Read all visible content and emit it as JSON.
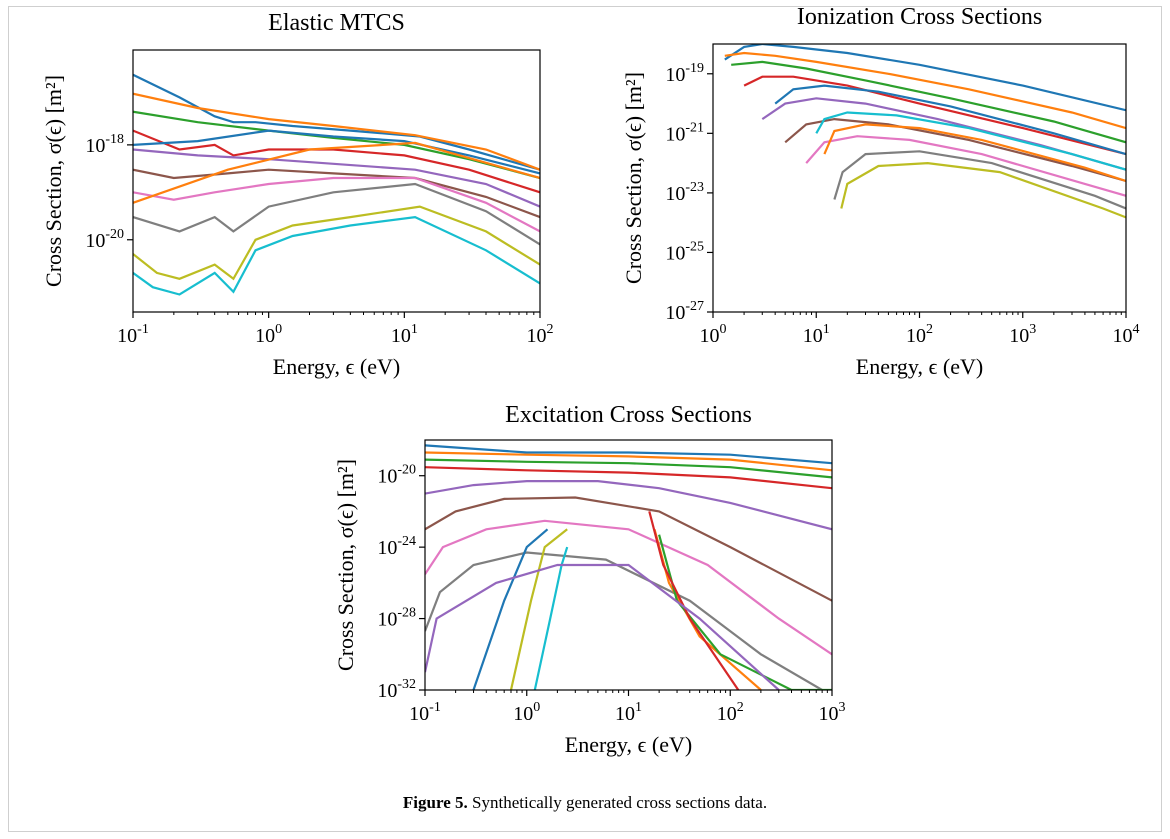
{
  "figure": {
    "caption_label": "Figure 5.",
    "caption_text": " Synthetically generated cross sections data."
  },
  "chart_data": [
    {
      "type": "line",
      "title": "Elastic MTCS",
      "xlabel": "Energy, ϵ (eV)",
      "ylabel": "Cross Section, σ(ϵ) [m²]",
      "xscale": "log",
      "yscale": "log",
      "xlim": [
        0.1,
        100
      ],
      "ylim": [
        3e-22,
        1e-16
      ],
      "xticks": [
        {
          "base": "10",
          "exp": "-1",
          "value": 0.1
        },
        {
          "base": "10",
          "exp": "0",
          "value": 1
        },
        {
          "base": "10",
          "exp": "1",
          "value": 10
        },
        {
          "base": "10",
          "exp": "2",
          "value": 100
        }
      ],
      "yticks": [
        {
          "base": "10",
          "exp": "-18",
          "value": 1e-18
        },
        {
          "base": "10",
          "exp": "-20",
          "value": 1e-20
        }
      ],
      "grid": false,
      "legend": "none",
      "colors": [
        "#1f77b4",
        "#ff7f0e",
        "#2ca02c",
        "#d62728",
        "#9467bd",
        "#8c564b",
        "#e377c2",
        "#7f7f7f",
        "#bcbd22",
        "#17becf"
      ],
      "series": [
        {
          "x": [
            0.1,
            0.22,
            0.4,
            0.55,
            0.8,
            1.5,
            4,
            13,
            30,
            100
          ],
          "y": [
            3e-17,
            1e-17,
            4e-18,
            3e-18,
            3e-18,
            2.5e-18,
            2e-18,
            1.5e-18,
            8e-19,
            3e-19
          ]
        },
        {
          "x": [
            0.1,
            0.3,
            1,
            3,
            12,
            40,
            100
          ],
          "y": [
            1.2e-17,
            6e-18,
            3.5e-18,
            2.5e-18,
            1.6e-18,
            8e-19,
            3e-19
          ]
        },
        {
          "x": [
            0.1,
            0.3,
            1,
            3,
            10,
            30,
            100
          ],
          "y": [
            5e-18,
            3e-18,
            2e-18,
            1.4e-18,
            1e-18,
            5e-19,
            2e-19
          ]
        },
        {
          "x": [
            0.1,
            0.22,
            0.4,
            0.55,
            1,
            3,
            10,
            30,
            100
          ],
          "y": [
            2e-18,
            8e-19,
            1e-18,
            6e-19,
            8e-19,
            8e-19,
            6e-19,
            3e-19,
            1e-19
          ]
        },
        {
          "x": [
            0.1,
            0.3,
            1,
            3,
            12,
            40,
            100
          ],
          "y": [
            8e-19,
            6e-19,
            5e-19,
            4e-19,
            3e-19,
            1.5e-19,
            5e-20
          ]
        },
        {
          "x": [
            0.1,
            0.2,
            0.5,
            1,
            3,
            12,
            40,
            100
          ],
          "y": [
            3e-19,
            2e-19,
            2.5e-19,
            3e-19,
            2.5e-19,
            2e-19,
            8e-20,
            3e-20
          ]
        },
        {
          "x": [
            0.1,
            0.2,
            0.4,
            1,
            3,
            12,
            40,
            100
          ],
          "y": [
            1e-19,
            7e-20,
            1e-19,
            1.5e-19,
            2e-19,
            2e-19,
            6e-20,
            1.5e-20
          ]
        },
        {
          "x": [
            0.1,
            0.22,
            0.4,
            0.55,
            1,
            3,
            12,
            40,
            100
          ],
          "y": [
            3e-20,
            1.5e-20,
            3e-20,
            1.5e-20,
            5e-20,
            1e-19,
            1.5e-19,
            4e-20,
            8e-21
          ]
        },
        {
          "x": [
            0.1,
            0.15,
            0.22,
            0.4,
            0.55,
            0.8,
            1.5,
            4,
            13,
            40,
            100
          ],
          "y": [
            5e-21,
            2e-21,
            1.5e-21,
            3e-21,
            1.5e-21,
            1e-20,
            2e-20,
            3e-20,
            5e-20,
            1.5e-20,
            3e-21
          ]
        },
        {
          "x": [
            0.1,
            0.14,
            0.22,
            0.4,
            0.55,
            0.8,
            1.5,
            4,
            12,
            40,
            100
          ],
          "y": [
            2e-21,
            1e-21,
            7e-22,
            2e-21,
            8e-22,
            6e-21,
            1.2e-20,
            2e-20,
            3e-20,
            6e-21,
            1.2e-21
          ]
        },
        {
          "x": [
            0.1,
            0.3,
            1,
            3,
            10,
            30,
            100
          ],
          "y": [
            1e-18,
            1.2e-18,
            2e-18,
            1.5e-18,
            1.2e-18,
            6e-19,
            2.5e-19
          ]
        },
        {
          "x": [
            0.1,
            0.5,
            2,
            12,
            100
          ],
          "y": [
            6e-20,
            3e-19,
            8e-19,
            1.1e-18,
            2e-19
          ]
        }
      ]
    },
    {
      "type": "line",
      "title": "Ionization Cross Sections",
      "xlabel": "Energy, ϵ (eV)",
      "ylabel": "Cross Section, σ(ϵ) [m²]",
      "xscale": "log",
      "yscale": "log",
      "xlim": [
        1,
        10000
      ],
      "ylim": [
        1e-27,
        1e-18
      ],
      "xticks": [
        {
          "base": "10",
          "exp": "0",
          "value": 1
        },
        {
          "base": "10",
          "exp": "1",
          "value": 10
        },
        {
          "base": "10",
          "exp": "2",
          "value": 100
        },
        {
          "base": "10",
          "exp": "3",
          "value": 1000
        },
        {
          "base": "10",
          "exp": "4",
          "value": 10000
        }
      ],
      "yticks": [
        {
          "base": "10",
          "exp": "-19",
          "value": 1e-19
        },
        {
          "base": "10",
          "exp": "-21",
          "value": 1e-21
        },
        {
          "base": "10",
          "exp": "-23",
          "value": 1e-23
        },
        {
          "base": "10",
          "exp": "-25",
          "value": 1e-25
        },
        {
          "base": "10",
          "exp": "-27",
          "value": 1e-27
        }
      ],
      "grid": false,
      "legend": "none",
      "colors": [
        "#1f77b4",
        "#ff7f0e",
        "#2ca02c",
        "#d62728",
        "#9467bd",
        "#8c564b",
        "#e377c2",
        "#7f7f7f",
        "#bcbd22",
        "#17becf"
      ],
      "series": [
        {
          "x": [
            1.3,
            2,
            3,
            6,
            20,
            100,
            1000,
            10000
          ],
          "y": [
            3e-19,
            8e-19,
            1e-18,
            8e-19,
            5e-19,
            2e-19,
            4e-20,
            6e-21
          ]
        },
        {
          "x": [
            1.3,
            2,
            4,
            10,
            50,
            300,
            3000,
            10000
          ],
          "y": [
            4e-19,
            5e-19,
            4e-19,
            2.5e-19,
            1e-19,
            3e-20,
            5e-21,
            1.5e-21
          ]
        },
        {
          "x": [
            1.5,
            3,
            8,
            30,
            200,
            2000,
            10000
          ],
          "y": [
            2e-19,
            2.5e-19,
            1.5e-19,
            6e-20,
            1.5e-20,
            2.5e-21,
            5e-22
          ]
        },
        {
          "x": [
            2,
            3,
            6,
            20,
            100,
            1000,
            10000
          ],
          "y": [
            4e-20,
            8e-20,
            8e-20,
            4e-20,
            1e-20,
            1.5e-21,
            2e-22
          ]
        },
        {
          "x": [
            3,
            5,
            10,
            30,
            150,
            1500,
            10000
          ],
          "y": [
            3e-21,
            1e-20,
            1.5e-20,
            1e-20,
            3e-21,
            4e-22,
            6e-23
          ]
        },
        {
          "x": [
            5,
            8,
            15,
            50,
            300,
            3000,
            10000
          ],
          "y": [
            5e-22,
            2e-21,
            3e-21,
            2e-21,
            6e-22,
            8e-23,
            2.5e-23
          ]
        },
        {
          "x": [
            8,
            12,
            25,
            80,
            400,
            4000,
            10000
          ],
          "y": [
            1e-22,
            5e-22,
            8e-22,
            6e-22,
            2e-22,
            2e-23,
            8e-24
          ]
        },
        {
          "x": [
            15,
            18,
            30,
            100,
            500,
            5000,
            10000
          ],
          "y": [
            6e-24,
            5e-23,
            2e-22,
            2.5e-22,
            1e-22,
            8e-24,
            3e-24
          ]
        },
        {
          "x": [
            17.5,
            20,
            40,
            120,
            600,
            6000,
            10000
          ],
          "y": [
            3e-24,
            2e-23,
            8e-23,
            1e-22,
            5e-23,
            3e-24,
            1.5e-24
          ]
        },
        {
          "x": [
            10,
            12,
            20,
            60,
            300,
            3000,
            10000
          ],
          "y": [
            1e-21,
            3e-21,
            5e-21,
            4e-21,
            1.5e-21,
            2e-22,
            6e-23
          ]
        },
        {
          "x": [
            4,
            6,
            12,
            40,
            200,
            2000,
            10000
          ],
          "y": [
            1e-20,
            3e-20,
            4e-20,
            2.5e-20,
            8e-21,
            1e-21,
            2e-22
          ]
        },
        {
          "x": [
            12,
            15,
            30,
            100,
            400,
            4000,
            10000
          ],
          "y": [
            2e-22,
            1.2e-21,
            2e-21,
            1.5e-21,
            6e-22,
            7e-23,
            2.5e-23
          ]
        }
      ]
    },
    {
      "type": "line",
      "title": "Excitation Cross Sections",
      "xlabel": "Energy, ϵ (eV)",
      "ylabel": "Cross Section, σ(ϵ) [m²]",
      "xscale": "log",
      "yscale": "log",
      "xlim": [
        0.1,
        1000
      ],
      "ylim": [
        1e-32,
        1e-18
      ],
      "xticks": [
        {
          "base": "10",
          "exp": "-1",
          "value": 0.1
        },
        {
          "base": "10",
          "exp": "0",
          "value": 1
        },
        {
          "base": "10",
          "exp": "1",
          "value": 10
        },
        {
          "base": "10",
          "exp": "2",
          "value": 100
        },
        {
          "base": "10",
          "exp": "3",
          "value": 1000
        }
      ],
      "yticks": [
        {
          "base": "10",
          "exp": "-20",
          "value": 1e-20
        },
        {
          "base": "10",
          "exp": "-24",
          "value": 1e-24
        },
        {
          "base": "10",
          "exp": "-28",
          "value": 1e-28
        },
        {
          "base": "10",
          "exp": "-32",
          "value": 1e-32
        }
      ],
      "grid": false,
      "legend": "none",
      "colors": [
        "#1f77b4",
        "#ff7f0e",
        "#2ca02c",
        "#d62728",
        "#9467bd",
        "#8c564b",
        "#e377c2",
        "#7f7f7f",
        "#bcbd22",
        "#17becf"
      ],
      "series": [
        {
          "x": [
            0.1,
            1,
            10,
            100,
            1000
          ],
          "y": [
            5e-19,
            2e-19,
            2e-19,
            1.5e-19,
            5e-20
          ]
        },
        {
          "x": [
            0.1,
            1,
            10,
            100,
            1000
          ],
          "y": [
            2e-19,
            1.5e-19,
            1.2e-19,
            8e-20,
            2e-20
          ]
        },
        {
          "x": [
            0.1,
            1,
            10,
            100,
            1000
          ],
          "y": [
            8e-20,
            6e-20,
            5e-20,
            3e-20,
            8e-21
          ]
        },
        {
          "x": [
            0.1,
            1,
            10,
            100,
            1000
          ],
          "y": [
            3e-20,
            2e-20,
            1.5e-20,
            8e-21,
            2e-21
          ]
        },
        {
          "x": [
            0.1,
            0.3,
            1,
            5,
            20,
            100,
            1000
          ],
          "y": [
            1e-21,
            3e-21,
            5e-21,
            5e-21,
            2e-21,
            3e-22,
            1e-23
          ]
        },
        {
          "x": [
            0.1,
            0.2,
            0.6,
            3,
            20,
            100,
            1000
          ],
          "y": [
            1e-23,
            1e-22,
            5e-22,
            6e-22,
            1e-22,
            1e-24,
            1e-27
          ]
        },
        {
          "x": [
            0.1,
            0.15,
            0.4,
            1.5,
            10,
            60,
            300,
            1000
          ],
          "y": [
            3e-26,
            1e-24,
            1e-23,
            3e-23,
            1e-23,
            1e-25,
            1e-28,
            1e-30
          ]
        },
        {
          "x": [
            0.1,
            0.14,
            0.3,
            1,
            6,
            40,
            200,
            800
          ],
          "y": [
            2e-29,
            3e-27,
            1e-25,
            5e-25,
            2e-25,
            1e-27,
            1e-30,
            1e-32
          ]
        },
        {
          "x": [
            0.7,
            1.1,
            1.5,
            2.5
          ],
          "y": [
            1e-32,
            1e-27,
            1e-24,
            1e-23
          ]
        },
        {
          "x": [
            1.2,
            1.7,
            2.2,
            2.5
          ],
          "y": [
            1e-32,
            1e-28,
            1e-25,
            1e-24
          ]
        },
        {
          "x": [
            0.3,
            0.6,
            1,
            1.6
          ],
          "y": [
            1e-32,
            1e-27,
            1e-24,
            1e-23
          ]
        },
        {
          "x": [
            18,
            25,
            50,
            200
          ],
          "y": [
            1e-23,
            1e-26,
            1e-29,
            1e-32
          ]
        },
        {
          "x": [
            20,
            30,
            80,
            400,
            1000
          ],
          "y": [
            5e-24,
            1e-27,
            1e-30,
            1e-32,
            1e-32
          ]
        },
        {
          "x": [
            16,
            22,
            40,
            120
          ],
          "y": [
            1e-22,
            1e-25,
            1e-28,
            1e-32
          ]
        },
        {
          "x": [
            0.1,
            0.13,
            0.5,
            2,
            10,
            50,
            300
          ],
          "y": [
            1e-31,
            1e-28,
            1e-26,
            1e-25,
            1e-25,
            1e-28,
            1e-32
          ]
        }
      ]
    }
  ]
}
